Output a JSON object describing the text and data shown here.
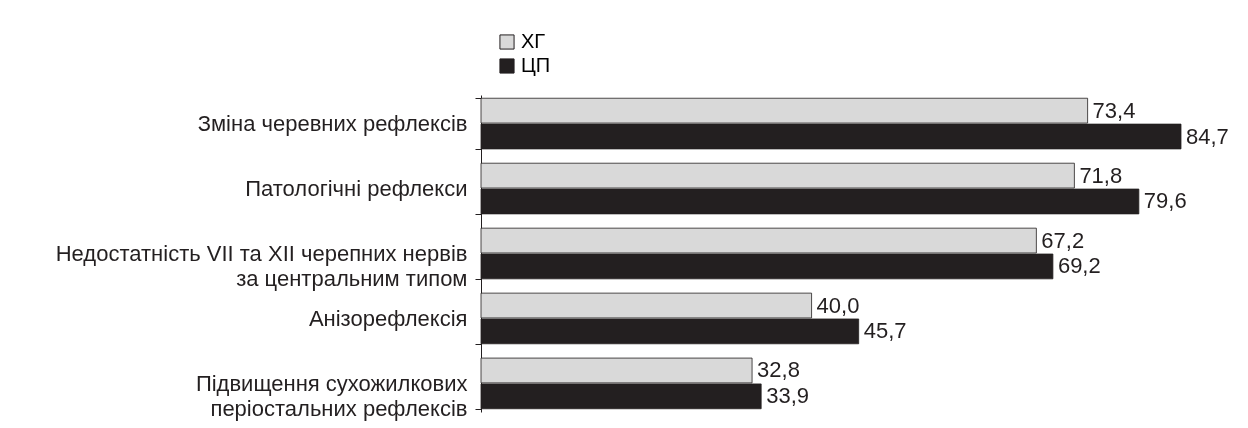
{
  "chart_data": {
    "type": "bar",
    "orientation": "horizontal",
    "categories": [
      "Зміна черевних рефлексів",
      "Патологічні рефлекси",
      "Недостатність VII та XII черепних нервів\nза центральним типом",
      "Анізорефлексія",
      "Підвищення сухожилкових\nперіостальних рефлексів"
    ],
    "series": [
      {
        "name": "ХГ",
        "color": "#d9d9d9",
        "values": [
          73.4,
          71.8,
          67.2,
          40.0,
          32.8
        ],
        "value_labels": [
          "73,4",
          "71,8",
          "67,2",
          "40,0",
          "32,8"
        ]
      },
      {
        "name": "ЦП",
        "color": "#231f20",
        "values": [
          84.7,
          79.6,
          69.2,
          45.7,
          33.9
        ],
        "value_labels": [
          "84,7",
          "79,6",
          "69,2",
          "45,7",
          "33,9"
        ]
      }
    ],
    "legend": "top left"
  }
}
